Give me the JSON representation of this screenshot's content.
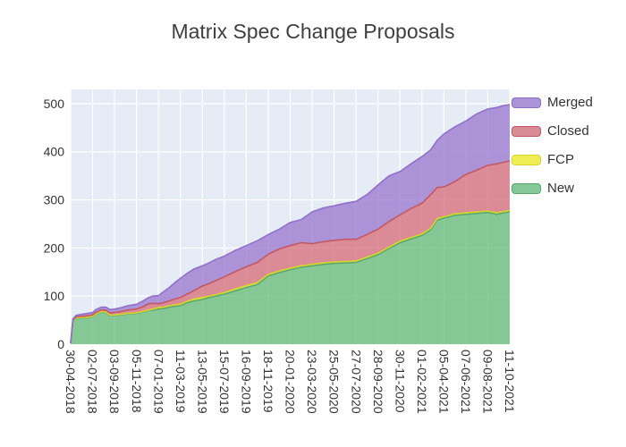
{
  "title": "Matrix Spec Change Proposals",
  "legend": {
    "position": "top-right-outside",
    "items": [
      {
        "label": "Merged",
        "fill": "#ab93d8",
        "line": "#9070c8"
      },
      {
        "label": "Closed",
        "fill": "#d98b96",
        "line": "#c25864"
      },
      {
        "label": "FCP",
        "fill": "#f0ee55",
        "line": "#d8d42e"
      },
      {
        "label": "New",
        "fill": "#85c796",
        "line": "#57a86b"
      }
    ]
  },
  "chart_data": {
    "type": "area",
    "stacked": true,
    "title": "Matrix Spec Change Proposals",
    "xlabel": "",
    "ylabel": "",
    "grid": true,
    "plot_bg": "#e5ecf6",
    "grid_color": "#ffffff",
    "tick_label_color": "#333333",
    "ylim": [
      0,
      530
    ],
    "y_ticks": [
      0,
      100,
      200,
      300,
      400,
      500
    ],
    "x_tick_labels": [
      "30-04-2018",
      "02-07-2018",
      "03-09-2018",
      "05-11-2018",
      "07-01-2019",
      "11-03-2019",
      "13-05-2019",
      "15-07-2019",
      "16-09-2019",
      "18-11-2019",
      "20-01-2020",
      "23-03-2020",
      "25-05-2020",
      "27-07-2020",
      "28-09-2020",
      "30-11-2020",
      "01-02-2021",
      "05-04-2021",
      "07-06-2021",
      "09-08-2021",
      "11-10-2021"
    ],
    "x_tick_positions": [
      0,
      1,
      2,
      3,
      4,
      5,
      6,
      7,
      8,
      9,
      10,
      11,
      12,
      13,
      14,
      15,
      16,
      17,
      18,
      19,
      20
    ],
    "x": [
      0,
      0.1,
      0.25,
      0.5,
      0.75,
      1,
      1.15,
      1.4,
      1.6,
      1.8,
      2,
      2.3,
      2.6,
      3,
      3.3,
      3.55,
      3.75,
      4,
      4.2,
      4.5,
      4.75,
      5,
      5.3,
      5.6,
      6,
      6.3,
      6.6,
      7,
      7.5,
      8,
      8.5,
      9,
      9.5,
      10,
      10.5,
      11,
      11.5,
      12,
      12.5,
      13,
      13.5,
      14,
      14.5,
      15,
      15.5,
      16,
      16.4,
      16.7,
      17,
      17.5,
      18,
      18.5,
      19,
      19.4,
      19.7,
      20
    ],
    "series_order_bottom_to_top": [
      "New",
      "FCP",
      "Closed",
      "Merged"
    ],
    "series": [
      {
        "name": "New",
        "area_fill": "#65bb76",
        "line": "#57a86b",
        "values": [
          2,
          48,
          54,
          55,
          55,
          57,
          62,
          67,
          66,
          59,
          60,
          61,
          63,
          64,
          67,
          70,
          71,
          73,
          74,
          77,
          79,
          80,
          86,
          90,
          93,
          97,
          100,
          104,
          111,
          118,
          124,
          142,
          149,
          155,
          160,
          163,
          166,
          168,
          169,
          170,
          178,
          186,
          199,
          211,
          219,
          226,
          238,
          258,
          262,
          268,
          270,
          272,
          274,
          270,
          273,
          275
        ]
      },
      {
        "name": "FCP",
        "area_fill": "#f4ef1f",
        "line": "#d8d42e",
        "values": [
          0,
          1,
          1,
          1,
          1,
          1,
          1,
          1,
          1,
          1,
          1,
          1,
          1,
          1,
          1,
          1,
          2,
          3,
          3,
          3,
          3,
          3,
          3,
          4,
          4,
          3,
          3,
          3,
          4,
          4,
          4,
          3,
          3,
          3,
          3,
          3,
          3,
          3,
          3,
          3,
          3,
          3,
          3,
          3,
          3,
          3,
          3,
          3,
          3,
          3,
          3,
          3,
          3,
          3,
          3,
          3
        ]
      },
      {
        "name": "Closed",
        "area_fill": "#d56b76",
        "line": "#c25864",
        "values": [
          0,
          1,
          2,
          2,
          3,
          3,
          3,
          3,
          4,
          5,
          5,
          6,
          7,
          8,
          10,
          13,
          12,
          8,
          9,
          10,
          12,
          14,
          15,
          17,
          24,
          26,
          29,
          33,
          36,
          39,
          42,
          42,
          46,
          47,
          48,
          43,
          44,
          45,
          46,
          45,
          47,
          50,
          53,
          55,
          60,
          64,
          70,
          65,
          62,
          67,
          80,
          87,
          95,
          102,
          102,
          103
        ]
      },
      {
        "name": "Merged",
        "area_fill": "#9875ce",
        "line": "#9070c8",
        "values": [
          0,
          2,
          3,
          4,
          5,
          5,
          6,
          6,
          6,
          7,
          7,
          8,
          9,
          10,
          12,
          13,
          15,
          17,
          22,
          28,
          34,
          40,
          43,
          45,
          42,
          43,
          44,
          43,
          44,
          44,
          45,
          41,
          41,
          48,
          48,
          66,
          70,
          72,
          75,
          79,
          83,
          92,
          95,
          90,
          93,
          97,
          93,
          98,
          110,
          114,
          111,
          117,
          117,
          117,
          118,
          117
        ]
      }
    ]
  }
}
